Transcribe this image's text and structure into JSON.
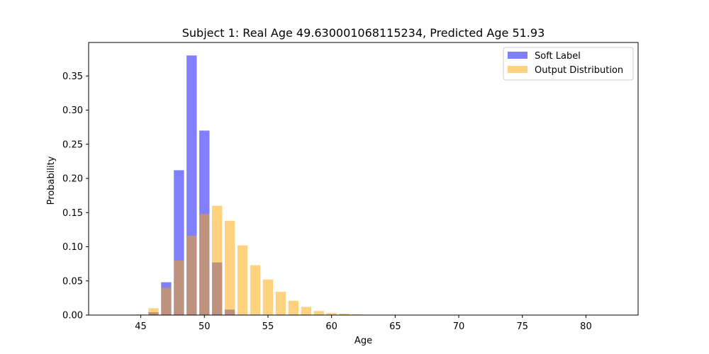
{
  "chart_data": {
    "type": "bar",
    "title": "Subject 1: Real Age 49.630001068115234, Predicted Age 51.93",
    "xlabel": "Age",
    "ylabel": "Probability",
    "xlim": [
      40.9,
      84.1
    ],
    "ylim": [
      0,
      0.399
    ],
    "xticks": [
      45,
      50,
      55,
      60,
      65,
      70,
      75,
      80
    ],
    "yticks": [
      0.0,
      0.05,
      0.1,
      0.15,
      0.2,
      0.25,
      0.3,
      0.35
    ],
    "ytick_labels": [
      "0.00",
      "0.05",
      "0.10",
      "0.15",
      "0.20",
      "0.25",
      "0.30",
      "0.35"
    ],
    "bar_width": 0.8,
    "grid": false,
    "legend_position": "top-right",
    "series": [
      {
        "name": "Soft Label",
        "color": "#0000ff",
        "alpha": 0.5,
        "x": [
          45,
          46,
          47,
          48,
          49,
          50,
          51,
          52,
          53
        ],
        "values": [
          0.0,
          0.004,
          0.048,
          0.212,
          0.38,
          0.27,
          0.077,
          0.008,
          0.0
        ]
      },
      {
        "name": "Output Distribution",
        "color": "#ffa500",
        "alpha": 0.5,
        "x": [
          42,
          43,
          44,
          45,
          46,
          47,
          48,
          49,
          50,
          51,
          52,
          53,
          54,
          55,
          56,
          57,
          58,
          59,
          60,
          61,
          62,
          63,
          64,
          65,
          66,
          67,
          68,
          69,
          70,
          71,
          72,
          73,
          74,
          75,
          76,
          77,
          78,
          79,
          80,
          81,
          82,
          83
        ],
        "values": [
          0.0,
          0.0,
          0.0,
          0.001,
          0.01,
          0.04,
          0.08,
          0.116,
          0.148,
          0.16,
          0.138,
          0.102,
          0.073,
          0.052,
          0.034,
          0.021,
          0.012,
          0.006,
          0.003,
          0.002,
          0.001,
          0.0,
          0.0,
          0.0,
          0.0,
          0.0,
          0.0,
          0.0,
          0.0,
          0.0,
          0.0,
          0.0,
          0.0,
          0.0,
          0.0,
          0.0,
          0.0,
          0.0,
          0.0,
          0.0,
          0.0,
          0.0
        ]
      }
    ]
  }
}
